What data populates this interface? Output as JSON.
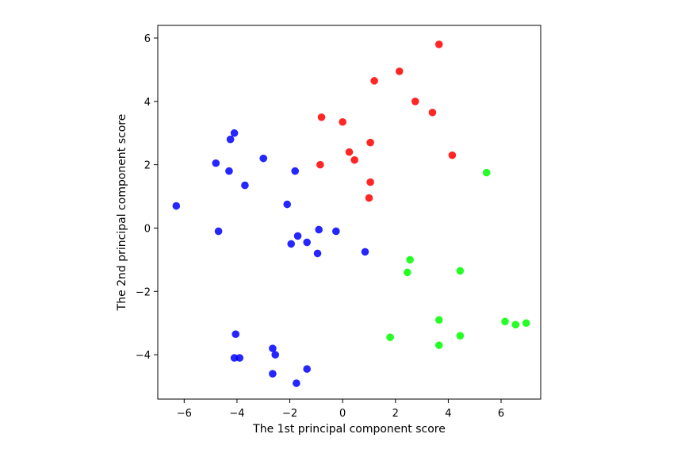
{
  "chart_data": {
    "type": "scatter",
    "title": "",
    "xlabel": "The 1st principal component score",
    "ylabel": "The 2nd principal component score",
    "xlim": [
      -7.0,
      7.5
    ],
    "ylim": [
      -5.4,
      6.4
    ],
    "xticks": [
      -6,
      -4,
      -2,
      0,
      2,
      4,
      6
    ],
    "yticks": [
      -4,
      -2,
      0,
      2,
      4,
      6
    ],
    "grid": false,
    "legend": "none",
    "series": [
      {
        "color": "#0000ff",
        "x": [
          -6.3,
          -4.1,
          -4.25,
          -4.8,
          -4.3,
          -3.7,
          -3.0,
          -1.8,
          -2.1,
          -4.7,
          -1.7,
          -1.95,
          -1.35,
          -0.95,
          -0.9,
          -0.25,
          0.85,
          -4.05,
          -2.65,
          -2.55,
          -4.1,
          -3.9,
          -2.65,
          -1.35,
          -1.75
        ],
        "y": [
          0.7,
          3.0,
          2.8,
          2.05,
          1.8,
          1.35,
          2.2,
          1.8,
          0.75,
          -0.1,
          -0.25,
          -0.5,
          -0.45,
          -0.8,
          -0.05,
          -0.1,
          -0.75,
          -3.35,
          -3.8,
          -4.0,
          -4.1,
          -4.1,
          -4.6,
          -4.45,
          -4.9
        ]
      },
      {
        "color": "#ff0000",
        "x": [
          3.65,
          2.15,
          1.2,
          2.75,
          3.4,
          -0.8,
          0.0,
          1.05,
          0.25,
          0.45,
          -0.85,
          4.15,
          1.05,
          1.0
        ],
        "y": [
          5.8,
          4.95,
          4.65,
          4.0,
          3.65,
          3.5,
          3.35,
          2.7,
          2.4,
          2.15,
          2.0,
          2.3,
          1.45,
          0.95
        ]
      },
      {
        "color": "#00ff00",
        "x": [
          5.45,
          2.55,
          4.45,
          2.45,
          3.65,
          6.15,
          6.55,
          6.95,
          1.8,
          3.65,
          4.45
        ],
        "y": [
          1.75,
          -1.0,
          -1.35,
          -1.4,
          -2.9,
          -2.95,
          -3.05,
          -3.0,
          -3.45,
          -3.7,
          -3.4
        ]
      }
    ]
  }
}
